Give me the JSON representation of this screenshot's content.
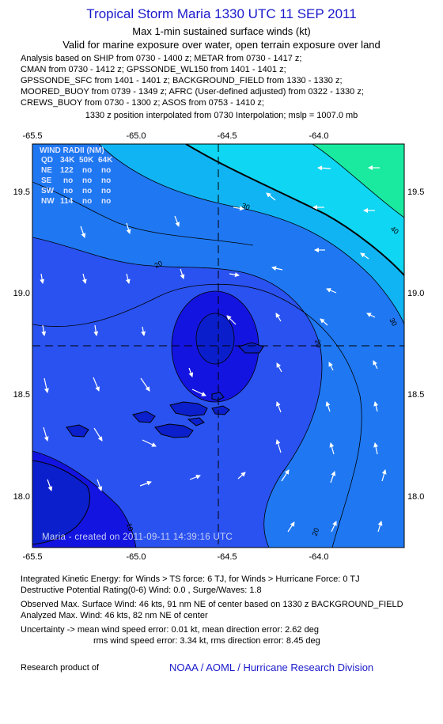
{
  "header": {
    "title": "Tropical Storm Maria 1330 UTC 11 SEP 2011",
    "subtitle1": "Max 1-min sustained surface winds (kt)",
    "subtitle2": "Valid for marine exposure over water, open terrain exposure over land"
  },
  "analysis_lines": [
    "Analysis based on SHIP from 0730 - 1400 z; METAR from 0730 - 1417 z;",
    "CMAN from 0730 - 1412 z; GPSSONDE_WL150 from 1401 - 1401 z;",
    "GPSSONDE_SFC from 1401 - 1401 z; BACKGROUND_FIELD from 1330 - 1330 z;",
    "MOORED_BUOY from 0739 - 1349 z; AFRC (User-defined adjusted) from 0322 - 1330 z;",
    "CREWS_BUOY from 0730 - 1300 z; ASOS from 0753 - 1410 z;"
  ],
  "position_note": "1330 z position interpolated from 0730 Interpolation; mslp = 1007.0 mb",
  "map": {
    "lon_labels": [
      "-65.5",
      "-65.0",
      "-64.5",
      "-64.0"
    ],
    "lat_labels": [
      "19.5",
      "19.0",
      "18.5",
      "18.0"
    ],
    "contour_labels": [
      "20",
      "30",
      "40",
      "30",
      "20",
      "20",
      "10"
    ],
    "watermark": "Maria - created on 2011-09-11 14:39:16 UTC",
    "colors": {
      "band_lt10": "#1414e0",
      "band_10_20": "#2a52f0",
      "band_20_30": "#1f78f2",
      "band_30_40": "#11b4f2",
      "band_40_50": "#0fd6f2",
      "band_gt50": "#1aeaa0",
      "center_core": "#0a1ecc"
    },
    "wind_radii": {
      "title": "WIND RADII (NM)",
      "header": [
        "QD",
        "34K",
        "50K",
        "64K"
      ],
      "rows": [
        [
          "NE",
          "122",
          "no",
          "no"
        ],
        [
          "SE",
          "no",
          "no",
          "no"
        ],
        [
          "SW",
          "no",
          "no",
          "no"
        ],
        [
          "NW",
          "114",
          "no",
          "no"
        ]
      ]
    }
  },
  "footer": {
    "ike": "Integrated Kinetic Energy:  for Winds > TS force: 6 TJ,  for Winds > Hurricane Force: 0 TJ",
    "dpr": "Destructive Potential Rating(0-6)   Wind: 0.0 , Surge/Waves: 1.8",
    "observed": "Observed Max. Surface Wind: 46 kts, 91 nm NE of center based on 1330 z BACKGROUND_FIELD",
    "analyzed": "Analyzed Max. Wind: 46 kts, 82 nm NE of center",
    "uncert1": "Uncertainty -> mean wind speed error: 0.01 kt,   mean direction error: 2.62 deg",
    "uncert2": "rms wind speed error: 3.34 kt,   rms direction error: 8.45 deg",
    "research": "Research product of",
    "credit": "NOAA / AOML / Hurricane Research Division"
  }
}
